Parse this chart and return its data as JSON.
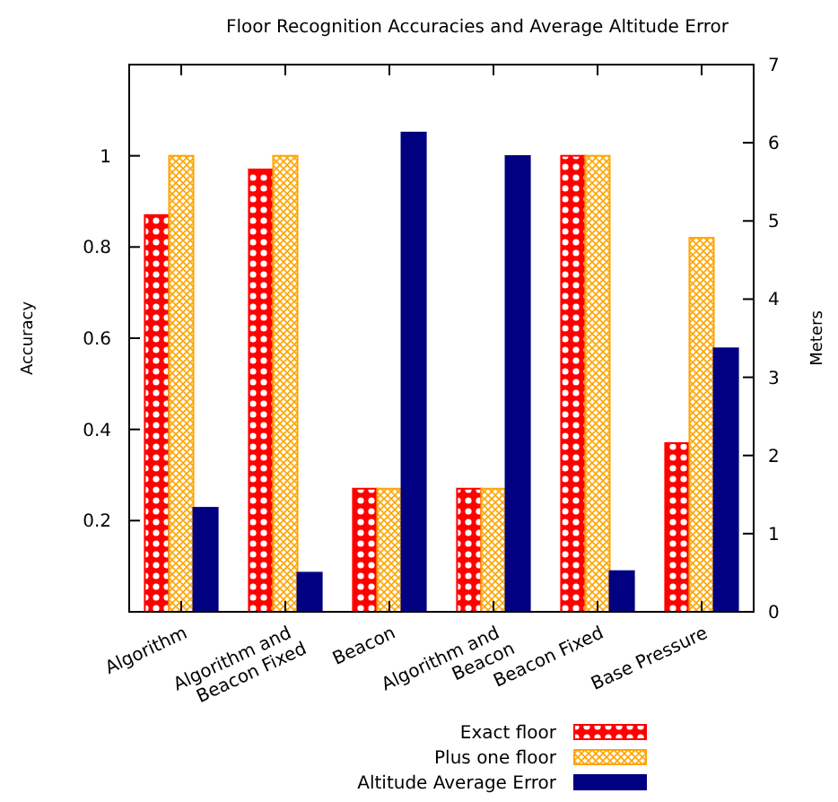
{
  "chart_data": {
    "type": "bar",
    "title": "Floor Recognition Accuracies and Average Altitude Error",
    "ylabel": "Accuracy",
    "y2label": "Meters",
    "categories": [
      "Algorithm",
      "Algorithm and\nBeacon Fixed",
      "Beacon",
      "Algorithm and\nBeacon",
      "Beacon Fixed",
      "Base Pressure"
    ],
    "series": [
      {
        "name": "Exact floor",
        "color": "#ff0000",
        "values": [
          0.87,
          0.97,
          0.27,
          0.27,
          1.0,
          0.37
        ]
      },
      {
        "name": "Plus one floor",
        "color": "#ffa500",
        "values": [
          1.0,
          1.0,
          0.27,
          0.27,
          1.0,
          0.82
        ]
      },
      {
        "name": "Altitude Average Error",
        "color": "#000080",
        "axis": "y2",
        "values": [
          1.33,
          0.5,
          6.13,
          5.83,
          0.52,
          3.37
        ]
      }
    ],
    "ylim": [
      0,
      1.2
    ],
    "yticks": [
      0.2,
      0.4,
      0.6,
      0.8,
      1
    ],
    "y2lim": [
      0,
      7
    ],
    "y2ticks": [
      0,
      1,
      2,
      3,
      4,
      5,
      6,
      7
    ],
    "grid": false,
    "legend": "bottom right"
  }
}
